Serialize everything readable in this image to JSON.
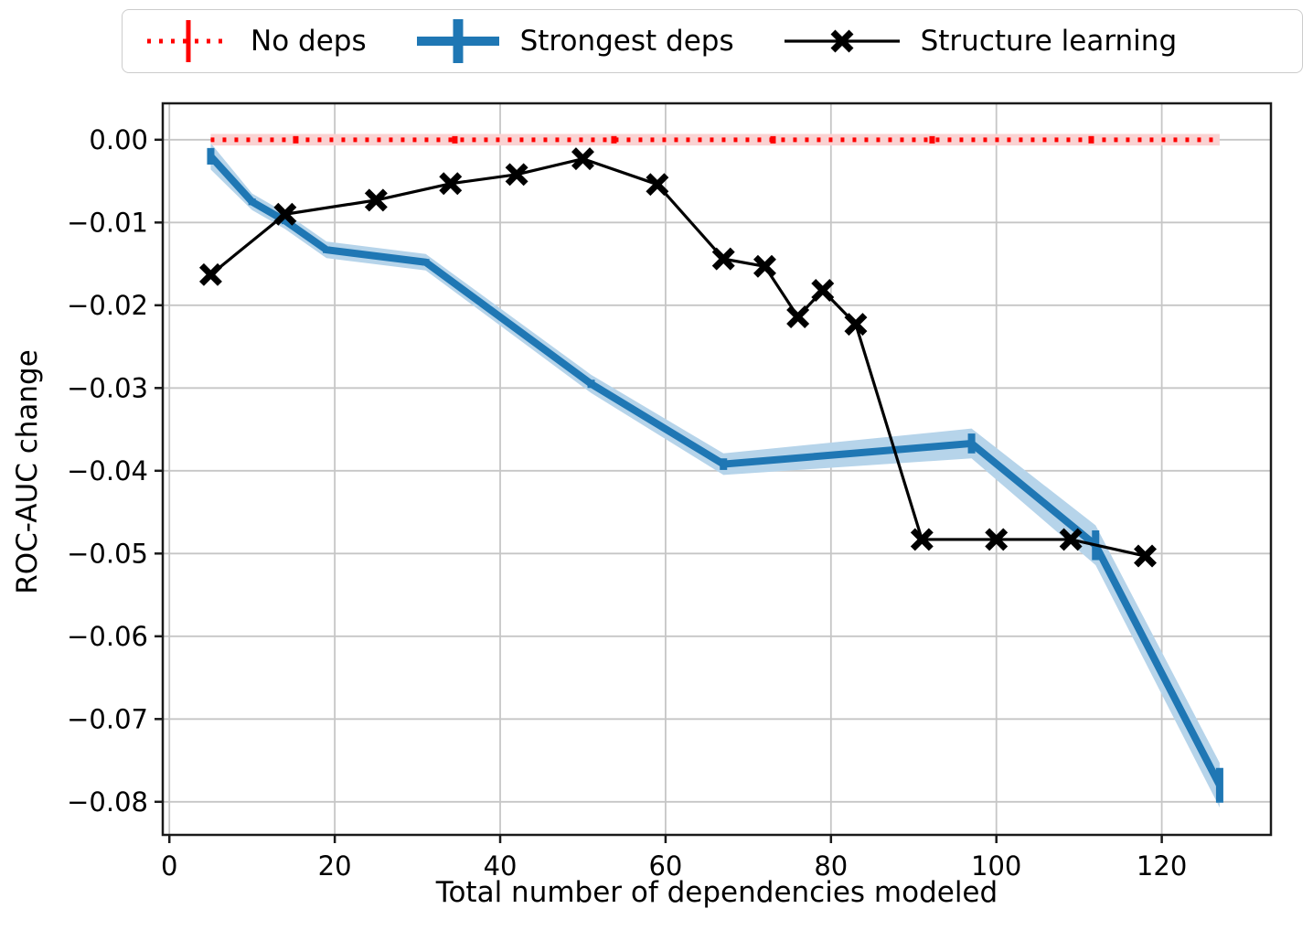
{
  "legend": {
    "position": "top",
    "items": [
      {
        "label": "No deps",
        "icon": "red-dotted-errorbar-icon"
      },
      {
        "label": "Strongest deps",
        "icon": "blue-thick-errorbar-icon"
      },
      {
        "label": "Structure learning",
        "icon": "black-x-marker-line-icon"
      }
    ]
  },
  "chart_data": {
    "type": "line",
    "title": "",
    "xlabel": "Total number of dependencies modeled",
    "ylabel": "ROC-AUC change",
    "xlim": [
      -0.8,
      133.2
    ],
    "ylim": [
      -0.084,
      0.0044
    ],
    "grid": true,
    "legend_position": "top outside",
    "xticks": [
      {
        "value": 0,
        "label": "0"
      },
      {
        "value": 20,
        "label": "20"
      },
      {
        "value": 40,
        "label": "40"
      },
      {
        "value": 60,
        "label": "60"
      },
      {
        "value": 80,
        "label": "80"
      },
      {
        "value": 100,
        "label": "100"
      },
      {
        "value": 120,
        "label": "120"
      }
    ],
    "yticks": [
      {
        "value": 0,
        "label": "0.00"
      },
      {
        "value": -0.01,
        "label": "−0.01"
      },
      {
        "value": -0.02,
        "label": "−0.02"
      },
      {
        "value": -0.03,
        "label": "−0.03"
      },
      {
        "value": -0.04,
        "label": "−0.04"
      },
      {
        "value": -0.05,
        "label": "−0.05"
      },
      {
        "value": -0.06,
        "label": "−0.06"
      },
      {
        "value": -0.07,
        "label": "−0.07"
      },
      {
        "value": -0.08,
        "label": "−0.08"
      }
    ],
    "series": [
      {
        "name": "No deps",
        "slug": "no-deps",
        "style": "dotted",
        "line_width": 5,
        "color": "#ff0000",
        "band_color": "#fad2d2",
        "band_pad": 0.0007,
        "points": [
          {
            "x": 5,
            "y": 0.0
          },
          {
            "x": 127,
            "y": 0.0
          }
        ]
      },
      {
        "name": "Strongest deps",
        "slug": "strongest-deps",
        "style": "solid",
        "line_width": 8,
        "color": "#1f77b4",
        "band_color": "#b6d4ea",
        "band_pad": 0.0006,
        "error_bars": true,
        "points": [
          {
            "x": 5,
            "y": -0.002,
            "err": 0.001
          },
          {
            "x": 10,
            "y": -0.0075,
            "err": 0.0004
          },
          {
            "x": 14,
            "y": -0.0098,
            "err": 0.0004
          },
          {
            "x": 19,
            "y": -0.0133,
            "err": 0.0004
          },
          {
            "x": 31,
            "y": -0.0148,
            "err": 0.0004
          },
          {
            "x": 51,
            "y": -0.0295,
            "err": 0.0005
          },
          {
            "x": 67,
            "y": -0.0392,
            "err": 0.0007
          },
          {
            "x": 97,
            "y": -0.0367,
            "err": 0.0012
          },
          {
            "x": 112,
            "y": -0.049,
            "err": 0.0018
          },
          {
            "x": 127,
            "y": -0.078,
            "err": 0.0021
          }
        ]
      },
      {
        "name": "Structure learning",
        "slug": "structure-learning",
        "style": "solid",
        "line_width": 3.2,
        "color": "#000000",
        "marker": "x",
        "marker_size": 10,
        "points": [
          {
            "x": 5,
            "y": -0.0163
          },
          {
            "x": 14,
            "y": -0.009
          },
          {
            "x": 25,
            "y": -0.0073
          },
          {
            "x": 34,
            "y": -0.0053
          },
          {
            "x": 42,
            "y": -0.0042
          },
          {
            "x": 50,
            "y": -0.0023
          },
          {
            "x": 59,
            "y": -0.0054
          },
          {
            "x": 67,
            "y": -0.0144
          },
          {
            "x": 72,
            "y": -0.0153
          },
          {
            "x": 76,
            "y": -0.0214
          },
          {
            "x": 79,
            "y": -0.0182
          },
          {
            "x": 83,
            "y": -0.0223
          },
          {
            "x": 91,
            "y": -0.0483
          },
          {
            "x": 100,
            "y": -0.0483
          },
          {
            "x": 109,
            "y": -0.0483
          },
          {
            "x": 118,
            "y": -0.0503
          }
        ]
      }
    ]
  }
}
